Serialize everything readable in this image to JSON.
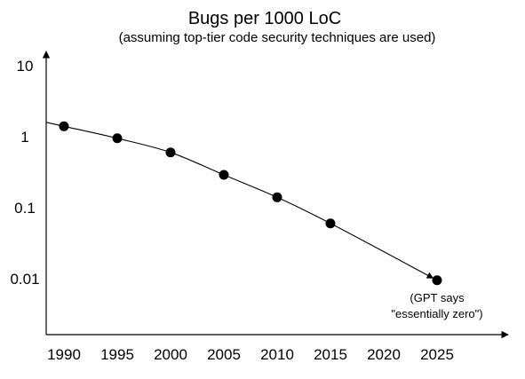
{
  "chart_data": {
    "type": "scatter",
    "title": "Bugs per 1000 LoC",
    "subtitle": "(assuming top-tier code security techniques are used)",
    "xlabel": "",
    "ylabel": "",
    "y_scale": "log",
    "x_ticks": [
      "1990",
      "1995",
      "2000",
      "2005",
      "2010",
      "2015",
      "2020",
      "2025"
    ],
    "y_ticks": [
      "10",
      "1",
      "0.1",
      "0.01"
    ],
    "xlim": [
      1989,
      2028
    ],
    "ylim": [
      0.0036,
      10
    ],
    "points": [
      {
        "x": 1990,
        "y": 1.4
      },
      {
        "x": 1995,
        "y": 0.95
      },
      {
        "x": 2000,
        "y": 0.6
      },
      {
        "x": 2005,
        "y": 0.29
      },
      {
        "x": 2010,
        "y": 0.14
      },
      {
        "x": 2015,
        "y": 0.06
      },
      {
        "x": 2025,
        "y": 0.0095
      }
    ],
    "trend_line": true,
    "annotation": {
      "lines": [
        "(GPT says",
        "\"essentially zero\")"
      ],
      "x": 2025
    },
    "grid": false,
    "legend": "none"
  }
}
